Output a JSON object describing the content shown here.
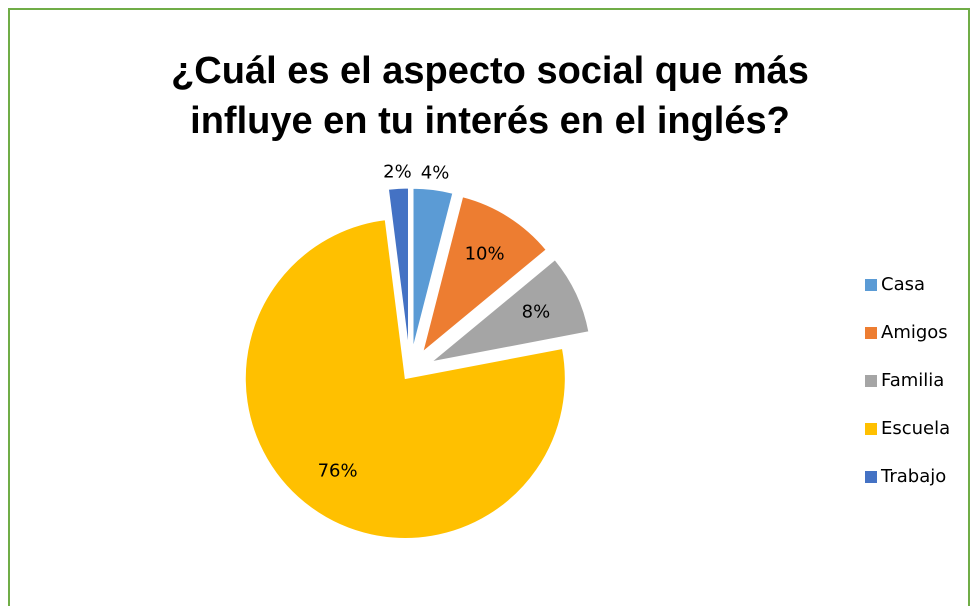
{
  "chart_data": {
    "type": "pie",
    "title": "¿Cuál es el aspecto social que más influye en tu interés en el inglés?",
    "categories": [
      "Casa",
      "Amigos",
      "Familia",
      "Escuela",
      "Trabajo"
    ],
    "values": [
      4,
      10,
      8,
      76,
      2
    ],
    "value_labels": [
      "4%",
      "10%",
      "8%",
      "76%",
      "2%"
    ],
    "colors": [
      "#5b9bd5",
      "#ed7d31",
      "#a5a5a5",
      "#ffc000",
      "#4472c4"
    ],
    "legend": "right"
  }
}
